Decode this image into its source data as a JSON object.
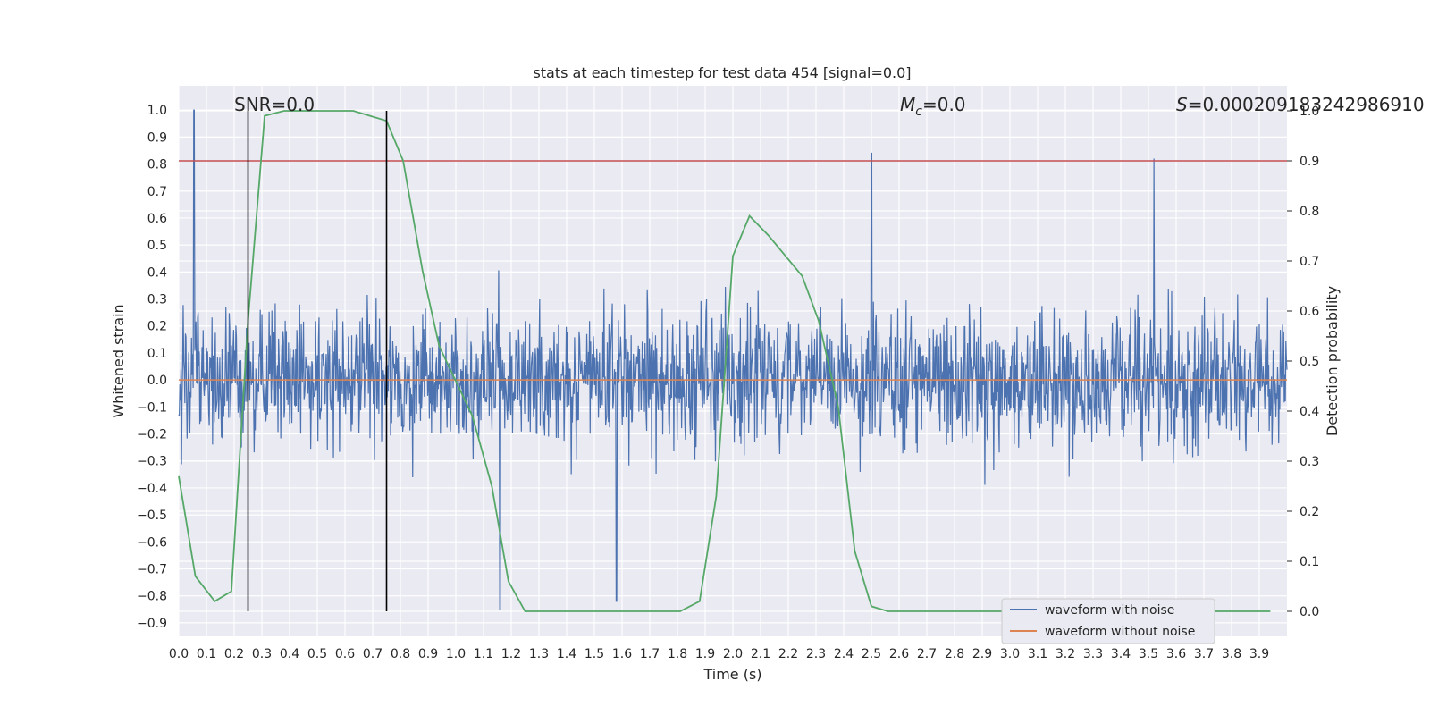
{
  "chart_data": {
    "type": "line",
    "title": "stats at each timestep for test data 454 [signal=0.0]",
    "xlabel": "Time (s)",
    "ylabel_left": "Whitened strain",
    "ylabel_right": "Detection probability",
    "xlim": [
      0.0,
      4.0
    ],
    "ylim_left": [
      -0.95,
      1.09
    ],
    "ylim_right": [
      -0.05,
      1.05
    ],
    "x_ticks": [
      "0.0",
      "0.1",
      "0.2",
      "0.3",
      "0.4",
      "0.5",
      "0.6",
      "0.7",
      "0.8",
      "0.9",
      "1.0",
      "1.1",
      "1.2",
      "1.3",
      "1.4",
      "1.5",
      "1.6",
      "1.7",
      "1.8",
      "1.9",
      "2.0",
      "2.1",
      "2.2",
      "2.3",
      "2.4",
      "2.5",
      "2.6",
      "2.7",
      "2.8",
      "2.9",
      "3.0",
      "3.1",
      "3.2",
      "3.3",
      "3.4",
      "3.5",
      "3.6",
      "3.7",
      "3.8",
      "3.9"
    ],
    "y_ticks_left": [
      "1.0",
      "0.9",
      "0.8",
      "0.7",
      "0.6",
      "0.5",
      "0.4",
      "0.3",
      "0.2",
      "0.1",
      "0.0",
      "-0.1",
      "-0.2",
      "-0.3",
      "-0.4",
      "-0.5",
      "-0.6",
      "-0.7",
      "-0.8",
      "-0.9"
    ],
    "y_ticks_right": [
      "1.0",
      "0.9",
      "0.8",
      "0.7",
      "0.6",
      "0.5",
      "0.4",
      "0.3",
      "0.2",
      "0.1",
      "0.0"
    ],
    "annotations": {
      "snr": "SNR=0.0",
      "mc_symbol": "M",
      "mc_sub": "c",
      "mc_value": "=0.0",
      "s_symbol": "S",
      "s_value": "=0.000209183242986910"
    },
    "series": [
      {
        "name": "waveform with noise",
        "color": "#4c72b0",
        "axis": "left",
        "note": "dense noise trace, approximately ±0.4 envelope with spikes up to 1.0 and down to -0.85",
        "peaks": [
          [
            0.055,
            1.0
          ],
          [
            2.5,
            0.84
          ],
          [
            3.52,
            0.82
          ],
          [
            1.16,
            -0.85
          ],
          [
            1.58,
            -0.82
          ]
        ]
      },
      {
        "name": "waveform without noise",
        "color": "#dd8452",
        "axis": "left",
        "x": [
          0.0,
          4.0
        ],
        "values": [
          0.0,
          0.0
        ]
      },
      {
        "name": "detection probability",
        "color": "#55a868",
        "axis": "right",
        "x": [
          0.0,
          0.06,
          0.13,
          0.19,
          0.25,
          0.31,
          0.38,
          0.44,
          0.5,
          0.56,
          0.63,
          0.69,
          0.75,
          0.81,
          0.88,
          0.94,
          1.0,
          1.06,
          1.13,
          1.19,
          1.25,
          1.31,
          1.38,
          1.44,
          1.5,
          1.56,
          1.63,
          1.69,
          1.75,
          1.81,
          1.88,
          1.94,
          2.0,
          2.06,
          2.13,
          2.19,
          2.25,
          2.31,
          2.38,
          2.44,
          2.5,
          2.56,
          2.63,
          2.69,
          2.75,
          2.81,
          2.88,
          2.94,
          3.0,
          3.06,
          3.13,
          3.19,
          3.25,
          3.31,
          3.38,
          3.44,
          3.5,
          3.56,
          3.63,
          3.69,
          3.75,
          3.81,
          3.88,
          3.94
        ],
        "values": [
          0.27,
          0.07,
          0.02,
          0.04,
          0.58,
          0.99,
          1.0,
          1.0,
          1.0,
          1.0,
          1.0,
          0.99,
          0.98,
          0.9,
          0.68,
          0.53,
          0.46,
          0.39,
          0.25,
          0.06,
          0.0,
          0.0,
          0.0,
          0.0,
          0.0,
          0.0,
          0.0,
          0.0,
          0.0,
          0.0,
          0.02,
          0.23,
          0.71,
          0.79,
          0.75,
          0.71,
          0.67,
          0.58,
          0.41,
          0.12,
          0.01,
          0.0,
          0.0,
          0.0,
          0.0,
          0.0,
          0.0,
          0.0,
          0.0,
          0.0,
          0.0,
          0.0,
          0.0,
          0.0,
          0.0,
          0.0,
          0.0,
          0.0,
          0.0,
          0.0,
          0.0,
          0.0,
          0.0,
          0.0
        ]
      }
    ],
    "threshold": {
      "color": "#c44e52",
      "axis": "right",
      "value": 0.9
    },
    "vertical_markers": {
      "color": "#000000",
      "x": [
        0.25,
        0.75
      ]
    },
    "legend": {
      "location": "lower-right",
      "entries": [
        {
          "label": "waveform with noise",
          "color": "#4c72b0"
        },
        {
          "label": "waveform without noise",
          "color": "#dd8452"
        }
      ]
    },
    "style": {
      "background": "#eaeaf2",
      "grid": true
    }
  }
}
